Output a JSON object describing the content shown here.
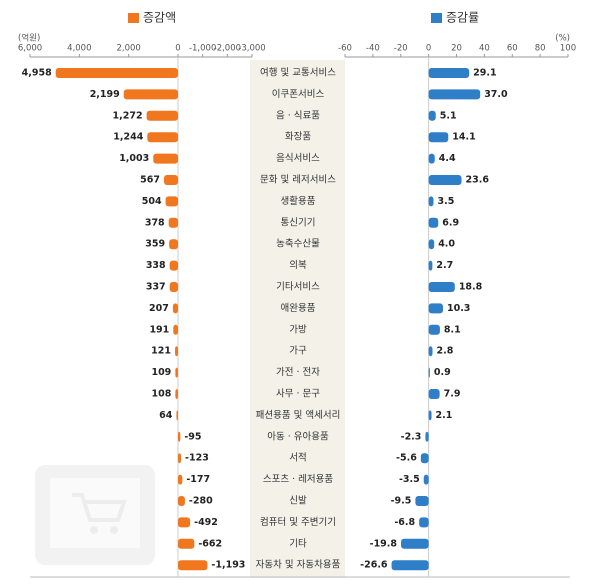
{
  "chart_data": [
    {
      "type": "bar",
      "orientation": "horizontal",
      "title": "증감액",
      "unit": "(억원)",
      "color": "#f0771e",
      "categories": [
        "여행 및 교통서비스",
        "이쿠폰서비스",
        "음 · 식료품",
        "화장품",
        "음식서비스",
        "문화 및 레저서비스",
        "생활용품",
        "통신기기",
        "농축수산물",
        "의복",
        "기타서비스",
        "애완용품",
        "가방",
        "가구",
        "가전 · 전자",
        "사무 · 문구",
        "패션용품 및 액세서리",
        "아동 · 유아용품",
        "서적",
        "스포츠 · 레저용품",
        "신발",
        "컴퓨터 및 주변기기",
        "기타",
        "자동차 및 자동차용품"
      ],
      "values": [
        4958,
        2199,
        1272,
        1244,
        1003,
        567,
        504,
        378,
        359,
        338,
        337,
        207,
        191,
        121,
        109,
        108,
        64,
        -95,
        -123,
        -177,
        -280,
        -492,
        -662,
        -1193
      ],
      "value_labels": [
        "4,958",
        "2,199",
        "1,272",
        "1,244",
        "1,003",
        "567",
        "504",
        "378",
        "359",
        "338",
        "337",
        "207",
        "191",
        "121",
        "109",
        "108",
        "64",
        "-95",
        "-123",
        "-177",
        "-280",
        "-492",
        "-662",
        "-1,193"
      ],
      "xlim": [
        6000,
        -3000
      ],
      "xticks": [
        {
          "value": 6000,
          "label": "6,000"
        },
        {
          "value": 4000,
          "label": "4,000"
        },
        {
          "value": 2000,
          "label": "2,000"
        },
        0,
        {
          "value": -1000,
          "label": "-1,000"
        },
        {
          "value": -2000,
          "label": "-2,000"
        },
        {
          "value": -3000,
          "label": "-3,000"
        }
      ]
    },
    {
      "type": "bar",
      "orientation": "horizontal",
      "title": "증감률",
      "unit": "(%)",
      "color": "#2f7fc8",
      "values": [
        29.1,
        37.0,
        5.1,
        14.1,
        4.4,
        23.6,
        3.5,
        6.9,
        4.0,
        2.7,
        18.8,
        10.3,
        8.1,
        2.8,
        0.9,
        7.9,
        2.1,
        -2.3,
        -5.6,
        -3.5,
        -9.5,
        -6.8,
        -19.8,
        -26.6
      ],
      "value_labels": [
        "29.1",
        "37.0",
        "5.1",
        "14.1",
        "4.4",
        "23.6",
        "3.5",
        "6.9",
        "4.0",
        "2.7",
        "18.8",
        "10.3",
        "8.1",
        "2.8",
        "0.9",
        "7.9",
        "2.1",
        "-2.3",
        "-5.6",
        "-3.5",
        "-9.5",
        "-6.8",
        "-19.8",
        "-26.6"
      ],
      "xlim": [
        -60,
        100
      ],
      "xticks": [
        -60,
        -40,
        -20,
        0,
        20,
        40,
        60,
        80,
        100
      ]
    }
  ]
}
